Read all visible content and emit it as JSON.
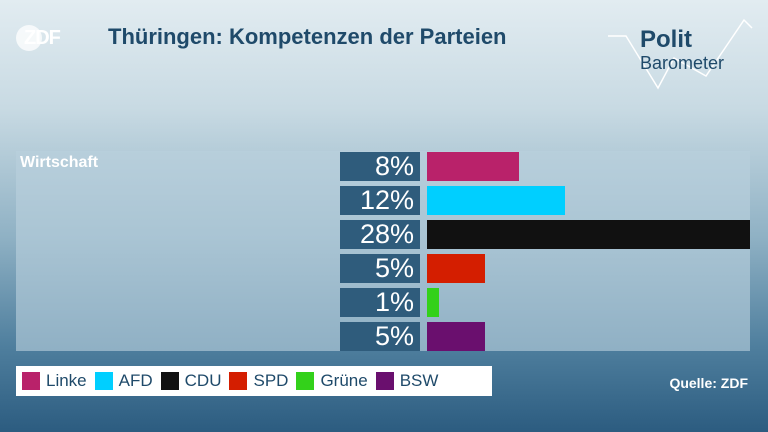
{
  "logo": {
    "text": "ZDF"
  },
  "title": "Thüringen: Kompetenzen der Parteien",
  "brand": {
    "line1": "Polit",
    "line2": "Barometer"
  },
  "source": "Quelle: ZDF",
  "chart_data": {
    "type": "bar",
    "orientation": "horizontal",
    "title": "Thüringen: Kompetenzen der Parteien",
    "category": "Wirtschaft",
    "unit": "%",
    "max": 28,
    "legend_position": "bottom-left",
    "series": [
      {
        "name": "Linke",
        "value": 8,
        "label": "8%",
        "color": "#b9226a"
      },
      {
        "name": "AFD",
        "value": 12,
        "label": "12%",
        "color": "#00cfff"
      },
      {
        "name": "CDU",
        "value": 28,
        "label": "28%",
        "color": "#111111"
      },
      {
        "name": "SPD",
        "value": 5,
        "label": "5%",
        "color": "#d41e00"
      },
      {
        "name": "Grüne",
        "value": 1,
        "label": "1%",
        "color": "#33d11a"
      },
      {
        "name": "BSW",
        "value": 5,
        "label": "5%",
        "color": "#6a0f6e"
      }
    ]
  }
}
